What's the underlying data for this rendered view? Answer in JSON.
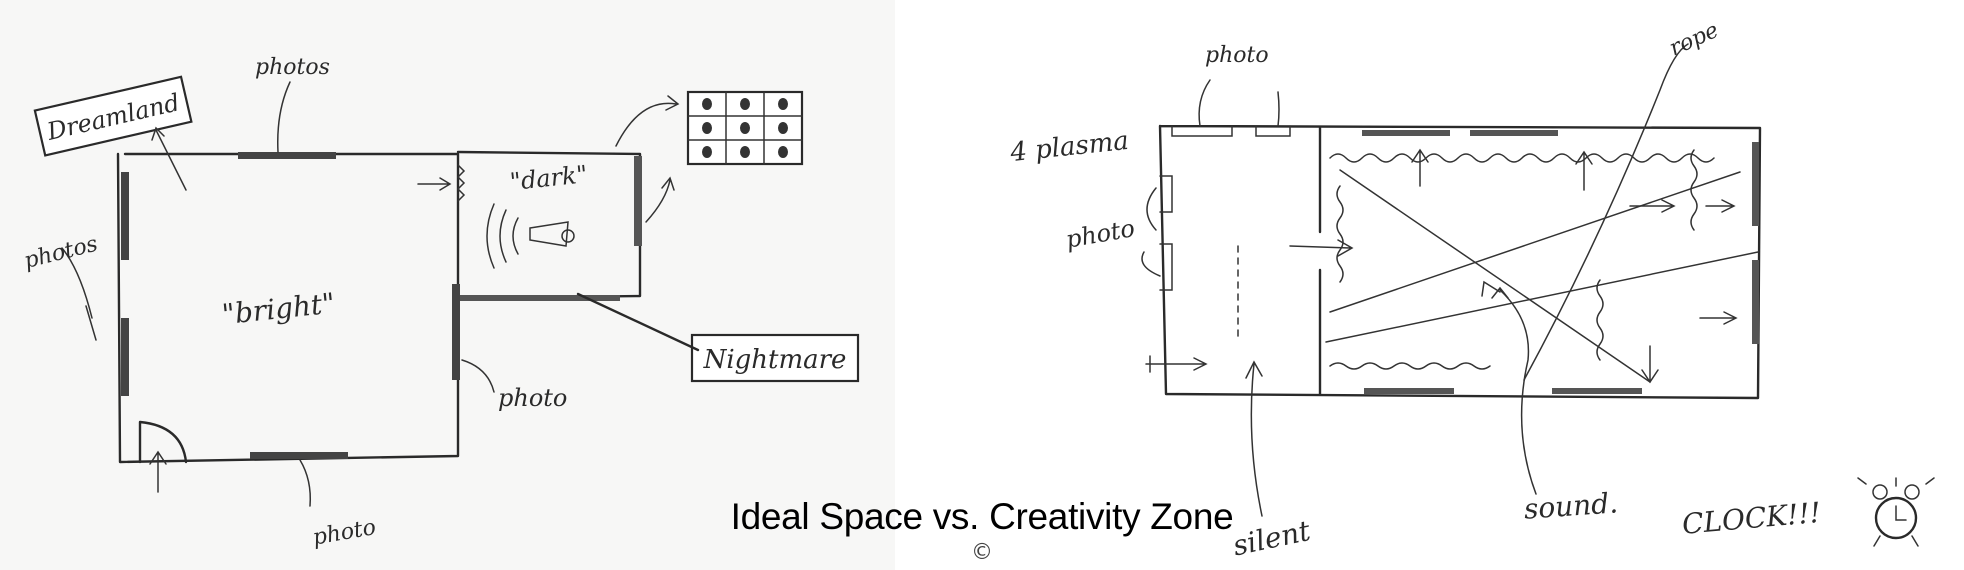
{
  "left_sketch": {
    "labels": {
      "dreamland": "Dreamland",
      "bright": "\"bright\"",
      "dark": "\"dark\"",
      "nightmare": "Nightmare",
      "photo_top": "photos",
      "photo_left": "photos",
      "photo_right": "photo",
      "photo_bottom": "photo"
    }
  },
  "right_sketch": {
    "labels": {
      "plasma": "4 plasma",
      "photo_top": "photo",
      "photo_left": "photo",
      "rope": "rope",
      "silent": "silent",
      "sound": "sound.",
      "clock": "CLOCK!!!"
    }
  },
  "caption": "Ideal Space vs. Creativity Zone",
  "copyright": "©",
  "icons": {
    "megaphone": "megaphone-icon",
    "alarm_clock": "alarm-clock-icon",
    "photo_grid": "photo-grid-icon"
  }
}
